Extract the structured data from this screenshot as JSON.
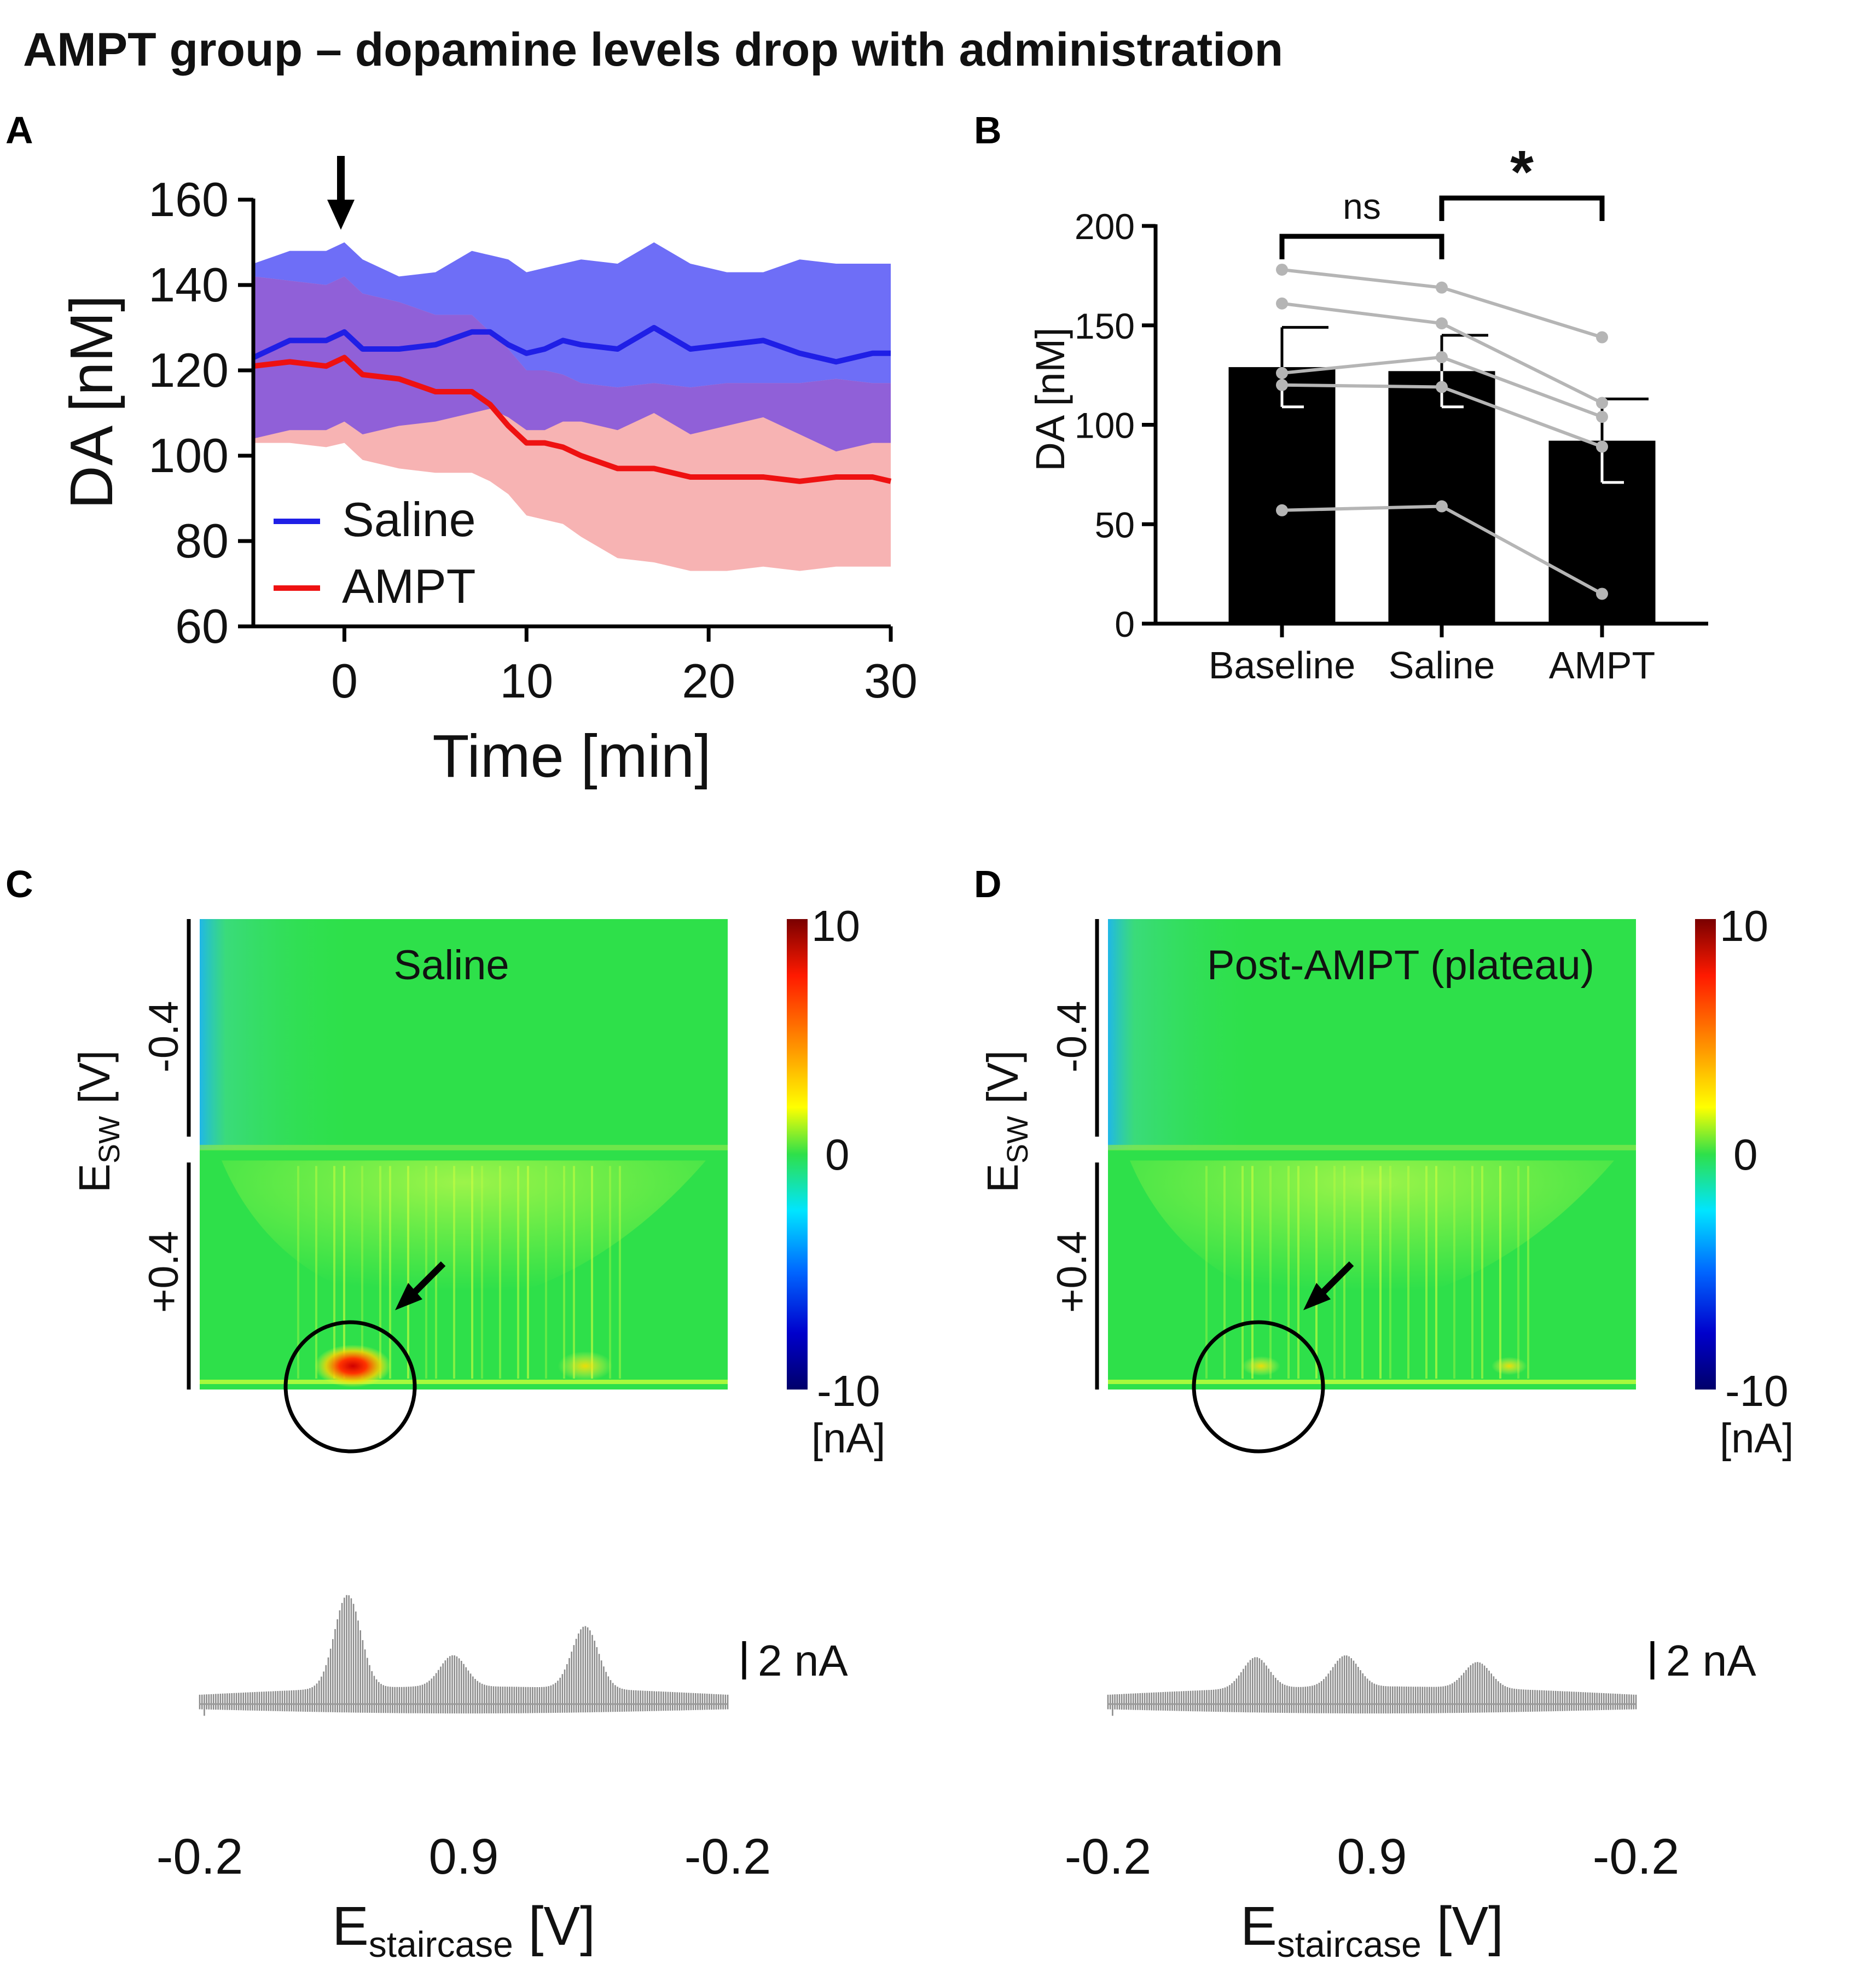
{
  "figure": {
    "title": "AMPT group – dopamine levels drop with administration",
    "panels": [
      "A",
      "B",
      "C",
      "D"
    ]
  },
  "colors": {
    "saline": "#1f1fe6",
    "saline_band": "#6e6ef7",
    "ampt": "#ee1111",
    "ampt_band": "#f7b3b3",
    "overlap_band": "#9060d8",
    "bar": "#000000",
    "paired_line": "#b5b5b5",
    "heat_bg": "#2ee04a"
  },
  "chart_data": [
    {
      "panel": "A",
      "type": "line",
      "title": "",
      "xlabel": "Time [min]",
      "ylabel": "DA [nM]",
      "xlim": [
        -5,
        30
      ],
      "ylim": [
        60,
        160
      ],
      "xticks": [
        0,
        10,
        20,
        30
      ],
      "yticks": [
        60,
        80,
        100,
        120,
        140,
        160
      ],
      "annotation": "arrow at t = 0 (administration)",
      "legend": {
        "position": "bottom-left",
        "entries": [
          "Saline",
          "AMPT"
        ]
      },
      "x": [
        -5,
        -3,
        -1,
        0,
        1,
        3,
        5,
        7,
        8,
        9,
        10,
        11,
        12,
        13,
        15,
        17,
        19,
        21,
        23,
        25,
        27,
        29,
        30
      ],
      "series": [
        {
          "name": "Saline",
          "values": [
            123,
            127,
            127,
            129,
            125,
            125,
            126,
            129,
            129,
            126,
            124,
            125,
            127,
            126,
            125,
            130,
            125,
            126,
            127,
            124,
            122,
            124,
            124
          ],
          "band_upper": [
            145,
            148,
            148,
            150,
            146,
            142,
            143,
            148,
            147,
            146,
            143,
            144,
            145,
            146,
            145,
            150,
            145,
            143,
            143,
            146,
            145,
            145,
            145
          ],
          "band_lower": [
            104,
            106,
            106,
            108,
            105,
            107,
            108,
            110,
            111,
            109,
            106,
            106,
            108,
            108,
            106,
            110,
            105,
            107,
            109,
            105,
            101,
            103,
            103
          ]
        },
        {
          "name": "AMPT",
          "values": [
            121,
            122,
            121,
            123,
            119,
            118,
            115,
            115,
            112,
            107,
            103,
            103,
            102,
            100,
            97,
            97,
            95,
            95,
            95,
            94,
            95,
            95,
            94
          ],
          "band_upper": [
            142,
            141,
            140,
            142,
            138,
            136,
            133,
            133,
            129,
            125,
            120,
            120,
            119,
            117,
            116,
            117,
            116,
            117,
            117,
            117,
            118,
            117,
            117
          ],
          "band_lower": [
            103,
            103,
            102,
            103,
            99,
            97,
            96,
            96,
            94,
            91,
            86,
            85,
            84,
            81,
            76,
            75,
            73,
            73,
            74,
            73,
            74,
            74,
            74
          ]
        }
      ]
    },
    {
      "panel": "B",
      "type": "bar",
      "title": "",
      "xlabel": "",
      "ylabel": "DA [nM]",
      "ylim": [
        0,
        200
      ],
      "yticks": [
        0,
        50,
        100,
        150,
        200
      ],
      "categories": [
        "Baseline",
        "Saline",
        "AMPT"
      ],
      "values": [
        129,
        127,
        92
      ],
      "errors": [
        20,
        18,
        21
      ],
      "paired_points": [
        [
          178,
          169,
          144
        ],
        [
          161,
          151,
          111
        ],
        [
          126,
          134,
          104
        ],
        [
          120,
          119,
          89
        ],
        [
          57,
          59,
          15
        ]
      ],
      "significance": [
        {
          "from": "Baseline",
          "to": "Saline",
          "label": "ns"
        },
        {
          "from": "Saline",
          "to": "AMPT",
          "label": "*"
        }
      ]
    },
    {
      "panel": "C",
      "type": "heatmap",
      "title": "Saline",
      "xlabel_main": "E",
      "xlabel_sub": "staircase",
      "xlabel_unit": " [V]",
      "ylabel_main": "E",
      "ylabel_sub": "SW",
      "ylabel_unit": " [V]",
      "xticks": [
        "-0.2",
        "0.9",
        "-0.2"
      ],
      "yticks": [
        "-0.4",
        "+0.4"
      ],
      "colorbar": {
        "max": "10",
        "mid": "0",
        "min": "-10",
        "unit": "[nA]",
        "range": [
          -10,
          10
        ]
      },
      "hotspots": [
        {
          "x_frac": 0.29,
          "y_frac": 0.95,
          "value_nA": 9
        },
        {
          "x_frac": 0.73,
          "y_frac": 0.95,
          "value_nA": 5
        }
      ],
      "trace_scale_label": "2 nA",
      "trace_peaks_nA": [
        [
          0.28,
          9
        ],
        [
          0.48,
          3
        ],
        [
          0.73,
          6
        ]
      ]
    },
    {
      "panel": "D",
      "type": "heatmap",
      "title": "Post-AMPT (plateau)",
      "xlabel_main": "E",
      "xlabel_sub": "staircase",
      "xlabel_unit": " [V]",
      "ylabel_main": "E",
      "ylabel_sub": "SW",
      "ylabel_unit": " [V]",
      "xticks": [
        "-0.2",
        "0.9",
        "-0.2"
      ],
      "yticks": [
        "-0.4",
        "+0.4"
      ],
      "colorbar": {
        "max": "10",
        "mid": "0",
        "min": "-10",
        "unit": "[nA]",
        "range": [
          -10,
          10
        ]
      },
      "hotspots": [
        {
          "x_frac": 0.29,
          "y_frac": 0.95,
          "value_nA": 2
        },
        {
          "x_frac": 0.76,
          "y_frac": 0.95,
          "value_nA": 1.5
        }
      ],
      "trace_scale_label": "2 nA",
      "trace_peaks_nA": [
        [
          0.28,
          3
        ],
        [
          0.45,
          3
        ],
        [
          0.7,
          2.5
        ]
      ]
    }
  ]
}
